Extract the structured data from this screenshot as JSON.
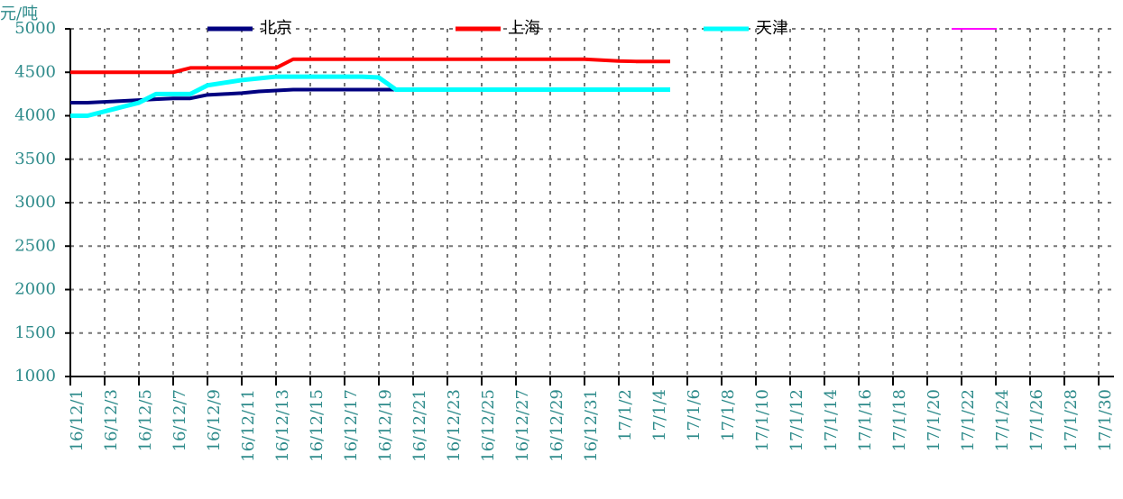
{
  "chart_data": {
    "type": "line",
    "y_label": "元/吨",
    "categories": [
      "16/12/1",
      null,
      "16/12/3",
      null,
      "16/12/5",
      null,
      "16/12/7",
      null,
      "16/12/9",
      null,
      "16/12/11",
      null,
      "16/12/13",
      null,
      "16/12/15",
      null,
      "16/12/17",
      null,
      "16/12/19",
      null,
      "16/12/21",
      null,
      "16/12/23",
      null,
      "16/12/25",
      null,
      "16/12/27",
      null,
      "16/12/29",
      null,
      "16/12/31",
      null,
      "17/1/2",
      null,
      "17/1/4",
      null,
      "17/1/6",
      null,
      "17/1/8",
      null,
      "17/1/10",
      null,
      "17/1/12",
      null,
      "17/1/14",
      null,
      "17/1/16",
      null,
      "17/1/18",
      null,
      "17/1/20",
      null,
      "17/1/22",
      null,
      "17/1/24",
      null,
      "17/1/26",
      null,
      "17/1/28",
      null,
      "17/1/30"
    ],
    "series": [
      {
        "name": "北京",
        "color": "#000080",
        "values": [
          4150,
          4150,
          4160,
          4170,
          4180,
          4190,
          4200,
          4200,
          4240,
          4250,
          4260,
          4280,
          4290,
          4300,
          4300,
          4300,
          4300,
          4300,
          4300,
          4300,
          4300,
          4300,
          4300,
          4300,
          4300,
          4300,
          4300,
          4300,
          4300,
          4300,
          4300,
          4300,
          4300,
          4300,
          4300,
          4300,
          null,
          null,
          null,
          null,
          null,
          null,
          null,
          null,
          null,
          null,
          null,
          null,
          null,
          null,
          null,
          null,
          null,
          null,
          null,
          null,
          null,
          null,
          null,
          null,
          null
        ]
      },
      {
        "name": "上海",
        "color": "#ff0000",
        "values": [
          4500,
          4500,
          4500,
          4500,
          4500,
          4500,
          4500,
          4550,
          4550,
          4550,
          4550,
          4550,
          4550,
          4650,
          4650,
          4650,
          4650,
          4650,
          4650,
          4650,
          4650,
          4650,
          4650,
          4650,
          4650,
          4650,
          4650,
          4650,
          4650,
          4650,
          4650,
          4640,
          4630,
          4625,
          4625,
          4625,
          null,
          null,
          null,
          null,
          null,
          null,
          null,
          null,
          null,
          null,
          null,
          null,
          null,
          null,
          null,
          null,
          null,
          null,
          null,
          null,
          null,
          null,
          null,
          null,
          null
        ]
      },
      {
        "name": "天津",
        "color": "#00ffff",
        "values": [
          4000,
          4000,
          4050,
          4100,
          4150,
          4250,
          4250,
          4250,
          4350,
          4380,
          4410,
          4430,
          4450,
          4450,
          4450,
          4450,
          4450,
          4450,
          4440,
          4300,
          4300,
          4300,
          4300,
          4300,
          4300,
          4300,
          4300,
          4300,
          4300,
          4300,
          4300,
          4300,
          4300,
          4300,
          4300,
          4300,
          null,
          null,
          null,
          null,
          null,
          null,
          null,
          null,
          null,
          null,
          null,
          null,
          null,
          null,
          null,
          null,
          null,
          null,
          null,
          null,
          null,
          null,
          null,
          null,
          null
        ]
      },
      {
        "color": "#ff00ff",
        "values": [
          null,
          null,
          null,
          null,
          null,
          null,
          null,
          null,
          null,
          null,
          null,
          null,
          null,
          null,
          null,
          null,
          null,
          null,
          null,
          null,
          null,
          null,
          null,
          null,
          null,
          null,
          null,
          null,
          null,
          null,
          null,
          null,
          null,
          null,
          null,
          null,
          null,
          null,
          null,
          null,
          null,
          null,
          null,
          null,
          null,
          null,
          null,
          null,
          null,
          null,
          null,
          null,
          null,
          null,
          null,
          null,
          null,
          null,
          null,
          null,
          null
        ]
      }
    ],
    "ylim": [
      1000,
      5000
    ],
    "yticks": [
      1000,
      1500,
      2000,
      2500,
      3000,
      3500,
      4000,
      4500,
      5000
    ],
    "grid": true
  }
}
